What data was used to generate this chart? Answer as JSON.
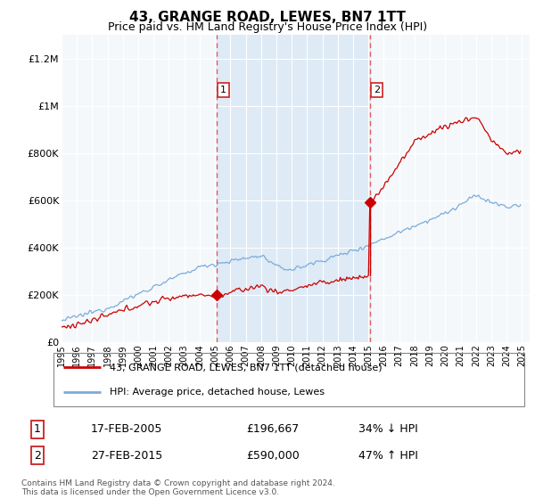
{
  "title": "43, GRANGE ROAD, LEWES, BN7 1TT",
  "subtitle": "Price paid vs. HM Land Registry's House Price Index (HPI)",
  "ylabel_ticks": [
    "£0",
    "£200K",
    "£400K",
    "£600K",
    "£800K",
    "£1M",
    "£1.2M"
  ],
  "ytick_values": [
    0,
    200000,
    400000,
    600000,
    800000,
    1000000,
    1200000
  ],
  "ylim": [
    0,
    1300000
  ],
  "xlim_start": 1995.0,
  "xlim_end": 2025.5,
  "sale1_year": 2005.125,
  "sale1_price": 196667,
  "sale2_year": 2015.125,
  "sale2_price": 590000,
  "red_line_color": "#cc0000",
  "blue_line_color": "#7aacdc",
  "shade_color": "#deeaf5",
  "dashed_line_color": "#e06060",
  "marker_color": "#cc0000",
  "bg_color": "#ffffff",
  "plot_bg_color": "#f5f8fb",
  "grid_color": "#cccccc",
  "legend_label_red": "43, GRANGE ROAD, LEWES, BN7 1TT (detached house)",
  "legend_label_blue": "HPI: Average price, detached house, Lewes",
  "table_row1": [
    "1",
    "17-FEB-2005",
    "£196,667",
    "34% ↓ HPI"
  ],
  "table_row2": [
    "2",
    "27-FEB-2015",
    "£590,000",
    "47% ↑ HPI"
  ],
  "footer": "Contains HM Land Registry data © Crown copyright and database right 2024.\nThis data is licensed under the Open Government Licence v3.0.",
  "title_fontsize": 11,
  "subtitle_fontsize": 9
}
